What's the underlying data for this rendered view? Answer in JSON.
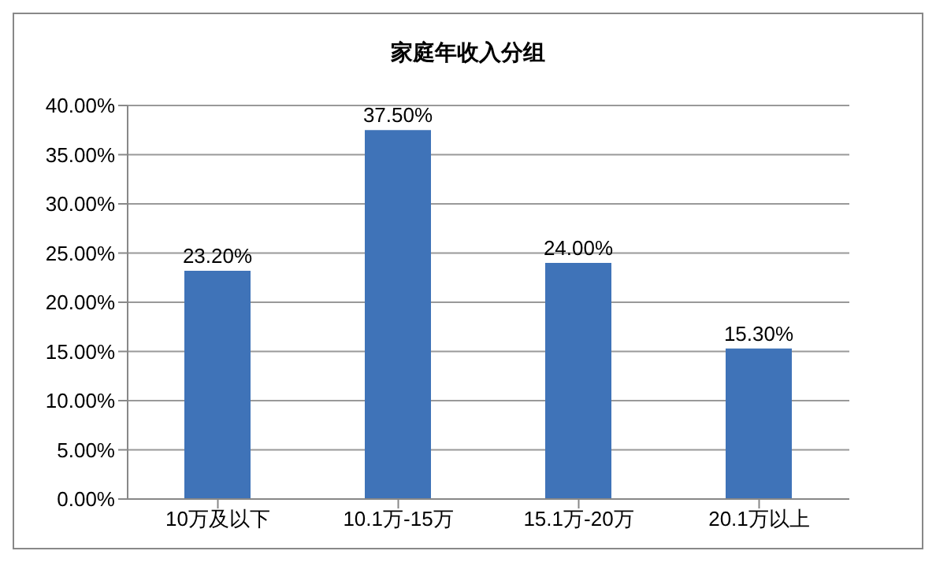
{
  "chart_data": {
    "type": "bar",
    "title": "家庭年收入分组",
    "categories": [
      "10万及以下",
      "10.1万-15万",
      "15.1万-20万",
      "20.1万以上"
    ],
    "values": [
      23.2,
      37.5,
      24.0,
      15.3
    ],
    "color": "#3f73b8",
    "value_labels": [
      "23.20%",
      "37.50%",
      "24.00%",
      "15.30%"
    ],
    "ylim": [
      0,
      40
    ],
    "yticks": [
      {
        "value": 0,
        "label": "0.00%"
      },
      {
        "value": 5,
        "label": "5.00%"
      },
      {
        "value": 10,
        "label": "10.00%"
      },
      {
        "value": 15,
        "label": "15.00%"
      },
      {
        "value": 20,
        "label": "20.00%"
      },
      {
        "value": 25,
        "label": "25.00%"
      },
      {
        "value": 30,
        "label": "30.00%"
      },
      {
        "value": 35,
        "label": "35.00%"
      },
      {
        "value": 40,
        "label": "40.00%"
      }
    ],
    "grid": "y",
    "legend": false
  }
}
